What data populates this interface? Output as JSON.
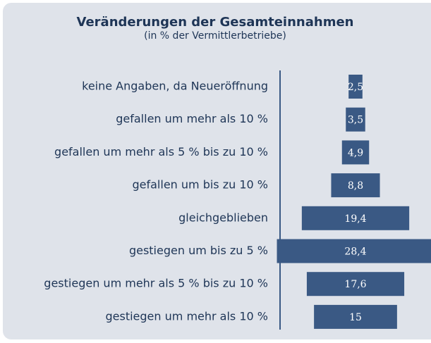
{
  "chart_data": {
    "type": "bar",
    "orientation": "horizontal",
    "title": "Veränderungen der Gesamteinnahmen",
    "subtitle": "(in % der Vermittlerbetriebe)",
    "categories": [
      "keine Angaben, da Neueröffnung",
      "gefallen um mehr als 10 %",
      "gefallen um mehr als 5 % bis zu 10 %",
      "gefallen um bis zu 10 %",
      "gleichgeblieben",
      "gestiegen um bis zu 5 %",
      "gestiegen um mehr als 5 % bis zu 10 %",
      "gestiegen um mehr als 10 %"
    ],
    "values": [
      2.5,
      3.5,
      4.9,
      8.8,
      19.4,
      28.4,
      17.6,
      15
    ],
    "value_labels": [
      "2,5",
      "3,5",
      "4,9",
      "8,8",
      "19,4",
      "28,4",
      "17,6",
      "15"
    ],
    "color": "#3a5984"
  }
}
